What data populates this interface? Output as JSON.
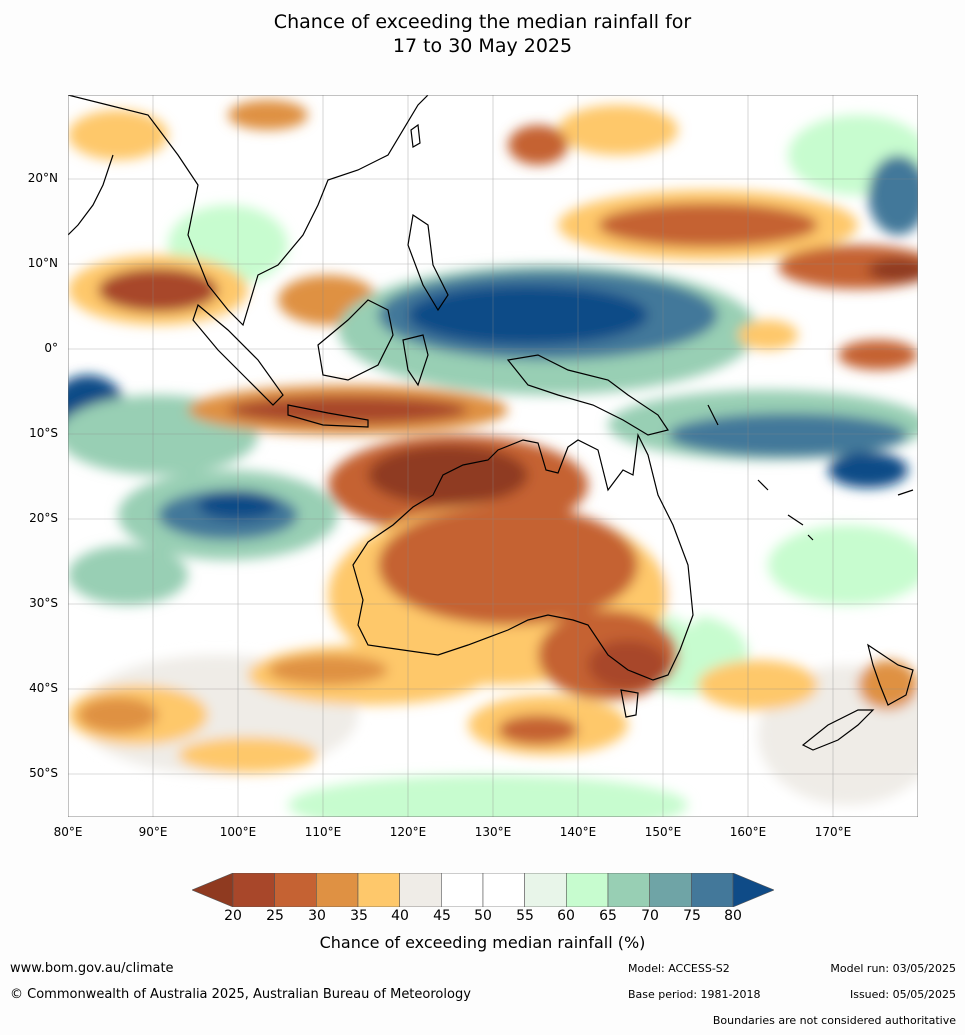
{
  "title": {
    "line1": "Chance of exceeding the median rainfall for",
    "line2": "17 to 30 May 2025"
  },
  "map": {
    "lat_labels": [
      "20°N",
      "10°N",
      "0°",
      "10°S",
      "20°S",
      "30°S",
      "40°S",
      "50°S"
    ],
    "lon_labels": [
      "80°E",
      "90°E",
      "100°E",
      "110°E",
      "120°E",
      "130°E",
      "140°E",
      "150°E",
      "160°E",
      "170°E"
    ],
    "lon_range": [
      80,
      180
    ],
    "lat_range": [
      -55,
      30
    ]
  },
  "colorbar": {
    "title": "Chance of exceeding median rainfall (%)",
    "ticks": [
      "20",
      "25",
      "30",
      "35",
      "40",
      "45",
      "50",
      "55",
      "60",
      "65",
      "70",
      "75",
      "80"
    ],
    "colors": [
      "#8f3a20",
      "#a8472a",
      "#c56233",
      "#df9143",
      "#fec86b",
      "#efece7",
      "#ffffff",
      "#ffffff",
      "#e8f5e9",
      "#c7fccf",
      "#98cfb4",
      "#6fa4a6",
      "#43789a",
      "#0f4b87"
    ]
  },
  "footer": {
    "website": "www.bom.gov.au/climate",
    "copyright": "© Commonwealth of Australia 2025, Australian Bureau of Meteorology",
    "model": "Model: ACCESS-S2",
    "base_period": "Base period: 1981-2018",
    "model_run": "Model run: 03/05/2025",
    "issued": "Issued: 05/05/2025",
    "boundaries_note": "Boundaries are not considered authoritative"
  }
}
